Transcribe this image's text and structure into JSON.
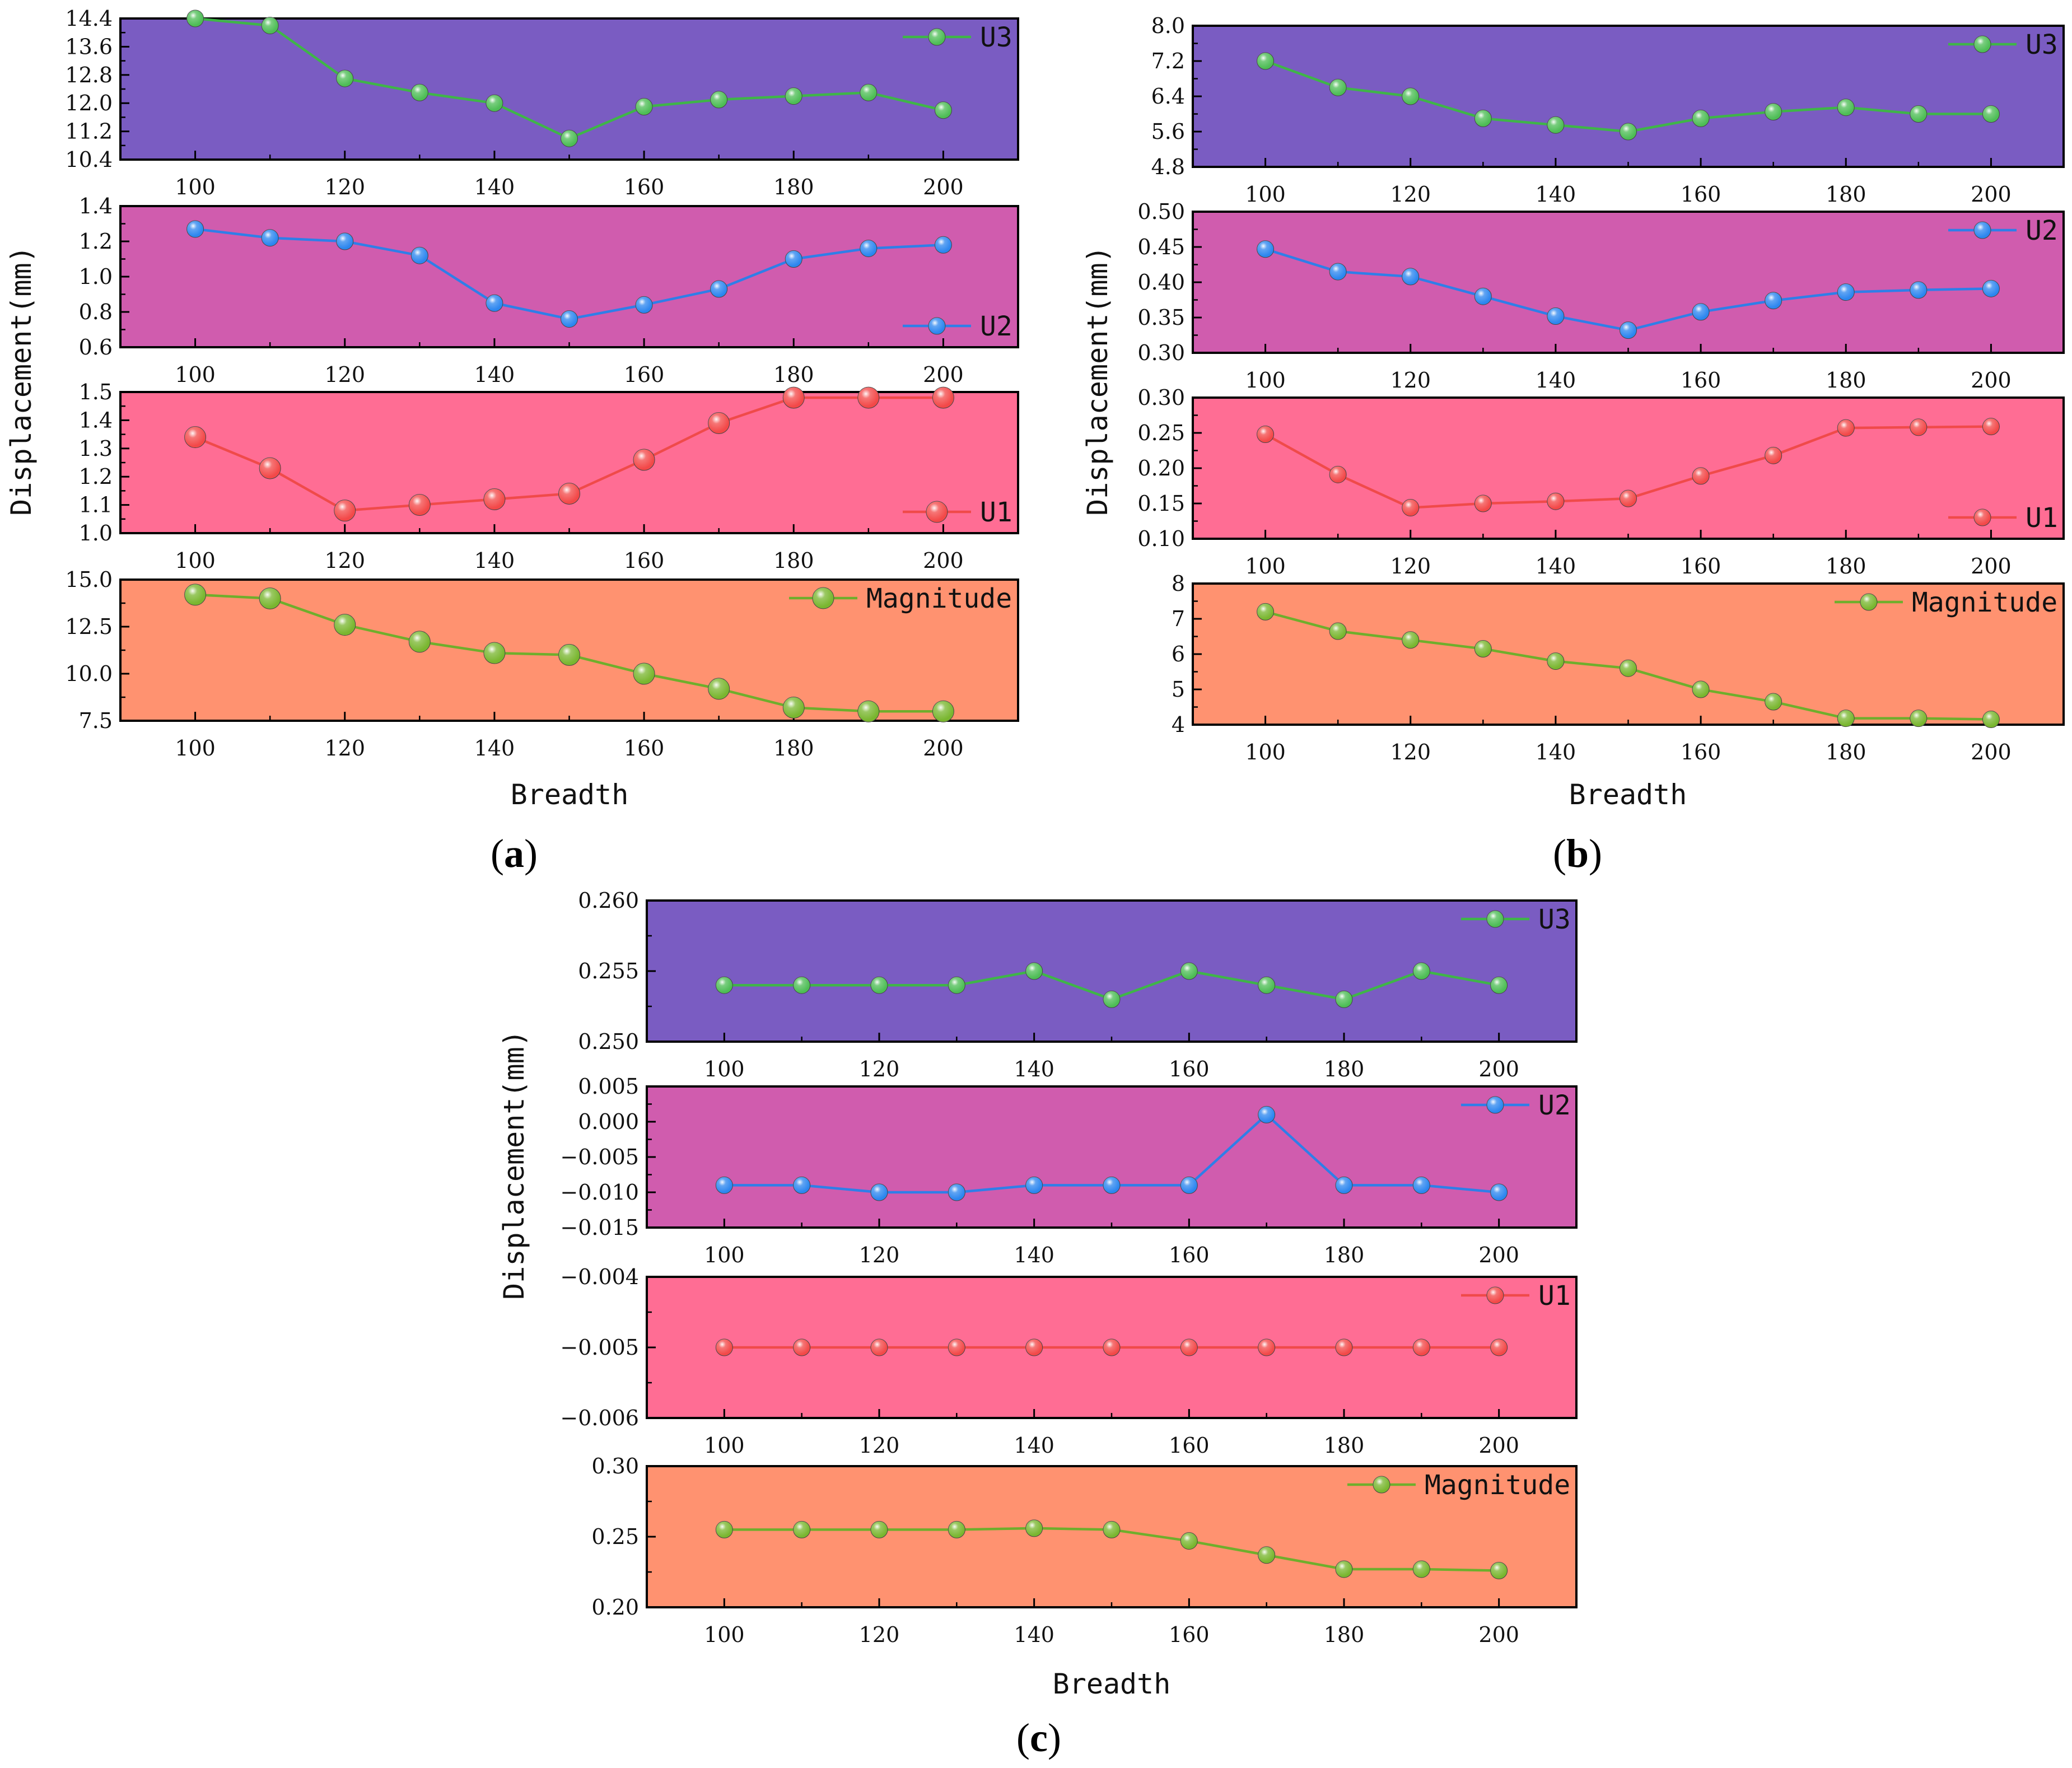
{
  "chart_data": [
    {
      "panel": "a",
      "caption_open": "(",
      "caption_letter": "a",
      "caption_close": ")",
      "xlabel": "Breadth",
      "ylabel": "Displacement(mm)",
      "x": [
        100,
        110,
        120,
        130,
        140,
        150,
        160,
        170,
        180,
        190,
        200
      ],
      "x_ticks": [
        100,
        120,
        140,
        160,
        180,
        200
      ],
      "xlim": [
        90,
        210
      ],
      "subplots": [
        {
          "type": "line",
          "series_name": "U3",
          "background": "#7a5cc2",
          "line_color": "#3fb548",
          "marker_color": "#4dbd55",
          "marker_size": "small",
          "legend_position": "top-right",
          "ylim": [
            10.4,
            14.4
          ],
          "y_ticks": [
            "10.4",
            "11.2",
            "12.0",
            "12.8",
            "13.6",
            "14.4"
          ],
          "values": [
            14.4,
            14.2,
            12.7,
            12.3,
            12.0,
            11.0,
            11.9,
            12.1,
            12.2,
            12.3,
            11.8
          ]
        },
        {
          "type": "line",
          "series_name": "U2",
          "background": "#d05cae",
          "line_color": "#2f7ee8",
          "marker_color": "#2c86ef",
          "marker_size": "small",
          "legend_position": "bottom-right",
          "ylim": [
            0.6,
            1.4
          ],
          "y_ticks": [
            "0.6",
            "0.8",
            "1.0",
            "1.2",
            "1.4"
          ],
          "values": [
            1.27,
            1.22,
            1.2,
            1.12,
            0.85,
            0.76,
            0.84,
            0.93,
            1.1,
            1.16,
            1.18
          ]
        },
        {
          "type": "line",
          "series_name": "U1",
          "background": "#ff6d94",
          "line_color": "#f04a4a",
          "marker_color": "#f34848",
          "marker_size": "large",
          "legend_position": "bottom-right",
          "ylim": [
            1.0,
            1.5
          ],
          "y_ticks": [
            "1.0",
            "1.1",
            "1.2",
            "1.3",
            "1.4",
            "1.5"
          ],
          "values": [
            1.34,
            1.23,
            1.08,
            1.1,
            1.12,
            1.14,
            1.26,
            1.39,
            1.48,
            1.48,
            1.48
          ]
        },
        {
          "type": "line",
          "series_name": "Magnitude",
          "background": "#ff9270",
          "line_color": "#6fae2c",
          "marker_color": "#79b62f",
          "marker_size": "large",
          "legend_position": "top-right",
          "ylim": [
            7.5,
            15.0
          ],
          "y_ticks": [
            "7.5",
            "10.0",
            "12.5",
            "15.0"
          ],
          "values": [
            14.2,
            14.0,
            12.6,
            11.7,
            11.1,
            11.0,
            10.0,
            9.2,
            8.2,
            8.0,
            8.0
          ]
        }
      ]
    },
    {
      "panel": "b",
      "caption_open": "(",
      "caption_letter": "b",
      "caption_close": ")",
      "xlabel": "Breadth",
      "ylabel": "Displacement(mm)",
      "x": [
        100,
        110,
        120,
        130,
        140,
        150,
        160,
        170,
        180,
        190,
        200
      ],
      "x_ticks": [
        100,
        120,
        140,
        160,
        180,
        200
      ],
      "xlim": [
        90,
        210
      ],
      "subplots": [
        {
          "type": "line",
          "series_name": "U3",
          "background": "#7a5cc2",
          "line_color": "#3fb548",
          "marker_color": "#4dbd55",
          "marker_size": "small",
          "legend_position": "top-right",
          "ylim": [
            4.8,
            8.0
          ],
          "y_ticks": [
            "4.8",
            "5.6",
            "6.4",
            "7.2",
            "8.0"
          ],
          "values": [
            7.2,
            6.6,
            6.4,
            5.9,
            5.75,
            5.6,
            5.9,
            6.05,
            6.15,
            6.0,
            6.0
          ]
        },
        {
          "type": "line",
          "series_name": "U2",
          "background": "#d05cae",
          "line_color": "#2f7ee8",
          "marker_color": "#2c86ef",
          "marker_size": "small",
          "legend_position": "top-right",
          "ylim": [
            0.3,
            0.5
          ],
          "y_ticks": [
            "0.30",
            "0.35",
            "0.40",
            "0.45",
            "0.50"
          ],
          "values": [
            0.447,
            0.415,
            0.408,
            0.38,
            0.352,
            0.332,
            0.358,
            0.374,
            0.386,
            0.389,
            0.391
          ]
        },
        {
          "type": "line",
          "series_name": "U1",
          "background": "#ff6d94",
          "line_color": "#f04a4a",
          "marker_color": "#f34848",
          "marker_size": "small",
          "legend_position": "bottom-right",
          "ylim": [
            0.1,
            0.3
          ],
          "y_ticks": [
            "0.10",
            "0.15",
            "0.20",
            "0.25",
            "0.30"
          ],
          "values": [
            0.248,
            0.191,
            0.144,
            0.15,
            0.153,
            0.157,
            0.189,
            0.218,
            0.257,
            0.258,
            0.259
          ]
        },
        {
          "type": "line",
          "series_name": "Magnitude",
          "background": "#ff9270",
          "line_color": "#6fae2c",
          "marker_color": "#79b62f",
          "marker_size": "small",
          "legend_position": "top-right",
          "ylim": [
            4,
            8
          ],
          "y_ticks": [
            "4",
            "5",
            "6",
            "7",
            "8"
          ],
          "values": [
            7.2,
            6.65,
            6.4,
            6.15,
            5.8,
            5.6,
            5.0,
            4.65,
            4.18,
            4.18,
            4.15
          ]
        }
      ]
    },
    {
      "panel": "c",
      "caption_open": "(",
      "caption_letter": "c",
      "caption_close": ")",
      "xlabel": "Breadth",
      "ylabel": "Displacement(mm)",
      "x": [
        100,
        110,
        120,
        130,
        140,
        150,
        160,
        170,
        180,
        190,
        200
      ],
      "x_ticks": [
        100,
        120,
        140,
        160,
        180,
        200
      ],
      "xlim": [
        90,
        210
      ],
      "subplots": [
        {
          "type": "line",
          "series_name": "U3",
          "background": "#7a5cc2",
          "line_color": "#3fb548",
          "marker_color": "#4dbd55",
          "marker_size": "small",
          "legend_position": "top-right",
          "ylim": [
            0.25,
            0.26
          ],
          "y_ticks": [
            "0.250",
            "0.255",
            "0.260"
          ],
          "values": [
            0.254,
            0.254,
            0.254,
            0.254,
            0.255,
            0.253,
            0.255,
            0.254,
            0.253,
            0.255,
            0.254
          ]
        },
        {
          "type": "line",
          "series_name": "U2",
          "background": "#d05cae",
          "line_color": "#2f7ee8",
          "marker_color": "#2c86ef",
          "marker_size": "small",
          "legend_position": "top-right",
          "ylim": [
            -0.015,
            0.005
          ],
          "y_ticks": [
            "−0.015",
            "−0.010",
            "−0.005",
            "0.000",
            "0.005"
          ],
          "values": [
            -0.009,
            -0.009,
            -0.01,
            -0.01,
            -0.009,
            -0.009,
            -0.009,
            0.001,
            -0.009,
            -0.009,
            -0.01
          ]
        },
        {
          "type": "line",
          "series_name": "U1",
          "background": "#ff6d94",
          "line_color": "#f04a4a",
          "marker_color": "#f34848",
          "marker_size": "small",
          "legend_position": "top-right",
          "ylim": [
            -0.006,
            -0.004
          ],
          "y_ticks_desc": [
            "−0.006",
            "−0.005",
            "−0.004"
          ],
          "y_ticks": [
            "−0.006",
            "−0.005",
            "−0.004"
          ],
          "values": [
            -0.005,
            -0.005,
            -0.005,
            -0.005,
            -0.005,
            -0.005,
            -0.005,
            -0.005,
            -0.005,
            -0.005,
            -0.005
          ]
        },
        {
          "type": "line",
          "series_name": "Magnitude",
          "background": "#ff9270",
          "line_color": "#6fae2c",
          "marker_color": "#79b62f",
          "marker_size": "small",
          "legend_position": "top-right",
          "ylim": [
            0.2,
            0.3
          ],
          "y_ticks": [
            "0.20",
            "0.25",
            "0.30"
          ],
          "values": [
            0.255,
            0.255,
            0.255,
            0.255,
            0.256,
            0.255,
            0.247,
            0.237,
            0.227,
            0.227,
            0.226
          ]
        }
      ]
    }
  ]
}
